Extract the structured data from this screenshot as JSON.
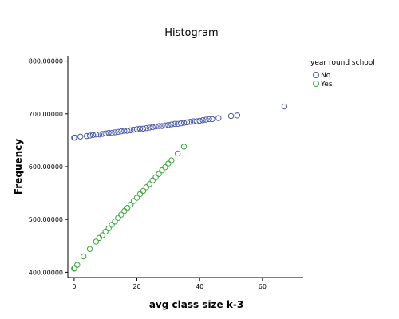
{
  "chart_data": {
    "type": "scatter",
    "title": "Histogram",
    "xlabel": "avg class size k-3",
    "ylabel": "Frequency",
    "xlim": [
      -2,
      73
    ],
    "ylim": [
      390,
      810
    ],
    "x_ticks": [
      {
        "value": 0,
        "label": "0"
      },
      {
        "value": 20,
        "label": "20"
      },
      {
        "value": 40,
        "label": "40"
      },
      {
        "value": 60,
        "label": "60"
      }
    ],
    "y_ticks": [
      {
        "value": 400,
        "label": "400.00000"
      },
      {
        "value": 500,
        "label": "500.00000"
      },
      {
        "value": 600,
        "label": "600.00000"
      },
      {
        "value": 700,
        "label": "700.00000"
      },
      {
        "value": 800,
        "label": "800.00000"
      }
    ],
    "grid": false,
    "legend": {
      "title": "year round school",
      "position": "right"
    },
    "series": [
      {
        "name": "No",
        "color": "#4a5aa8",
        "marker": "open-circle",
        "points": [
          [
            0,
            655
          ],
          [
            0.2,
            655
          ],
          [
            2,
            657
          ],
          [
            4,
            658
          ],
          [
            5,
            659
          ],
          [
            6,
            660
          ],
          [
            7,
            661
          ],
          [
            8,
            661
          ],
          [
            9,
            662
          ],
          [
            10,
            663
          ],
          [
            11,
            664
          ],
          [
            12,
            664
          ],
          [
            13,
            665
          ],
          [
            14,
            666
          ],
          [
            15,
            667
          ],
          [
            16,
            668
          ],
          [
            17,
            668
          ],
          [
            18,
            669
          ],
          [
            19,
            670
          ],
          [
            20,
            671
          ],
          [
            21,
            672
          ],
          [
            22,
            672
          ],
          [
            23,
            673
          ],
          [
            24,
            674
          ],
          [
            25,
            675
          ],
          [
            26,
            676
          ],
          [
            27,
            677
          ],
          [
            28,
            677
          ],
          [
            29,
            678
          ],
          [
            30,
            679
          ],
          [
            31,
            680
          ],
          [
            32,
            681
          ],
          [
            33,
            681
          ],
          [
            34,
            682
          ],
          [
            35,
            683
          ],
          [
            36,
            684
          ],
          [
            37,
            685
          ],
          [
            38,
            686
          ],
          [
            39,
            686
          ],
          [
            40,
            687
          ],
          [
            41,
            688
          ],
          [
            42,
            689
          ],
          [
            43,
            690
          ],
          [
            44,
            690
          ],
          [
            46,
            692
          ],
          [
            50,
            696
          ],
          [
            52,
            697
          ],
          [
            67,
            714
          ]
        ]
      },
      {
        "name": "Yes",
        "color": "#3aa63a",
        "marker": "open-circle",
        "points": [
          [
            0,
            407
          ],
          [
            0.2,
            408
          ],
          [
            1,
            414
          ],
          [
            3,
            430
          ],
          [
            5,
            444
          ],
          [
            7,
            458
          ],
          [
            8,
            465
          ],
          [
            9,
            470
          ],
          [
            10,
            477
          ],
          [
            11,
            483
          ],
          [
            12,
            490
          ],
          [
            13,
            496
          ],
          [
            14,
            503
          ],
          [
            15,
            509
          ],
          [
            16,
            516
          ],
          [
            17,
            522
          ],
          [
            18,
            528
          ],
          [
            19,
            535
          ],
          [
            20,
            541
          ],
          [
            21,
            548
          ],
          [
            22,
            554
          ],
          [
            23,
            561
          ],
          [
            24,
            567
          ],
          [
            25,
            574
          ],
          [
            26,
            580
          ],
          [
            27,
            586
          ],
          [
            28,
            593
          ],
          [
            29,
            599
          ],
          [
            30,
            606
          ],
          [
            31,
            612
          ],
          [
            33,
            625
          ],
          [
            35,
            638
          ]
        ]
      }
    ]
  }
}
